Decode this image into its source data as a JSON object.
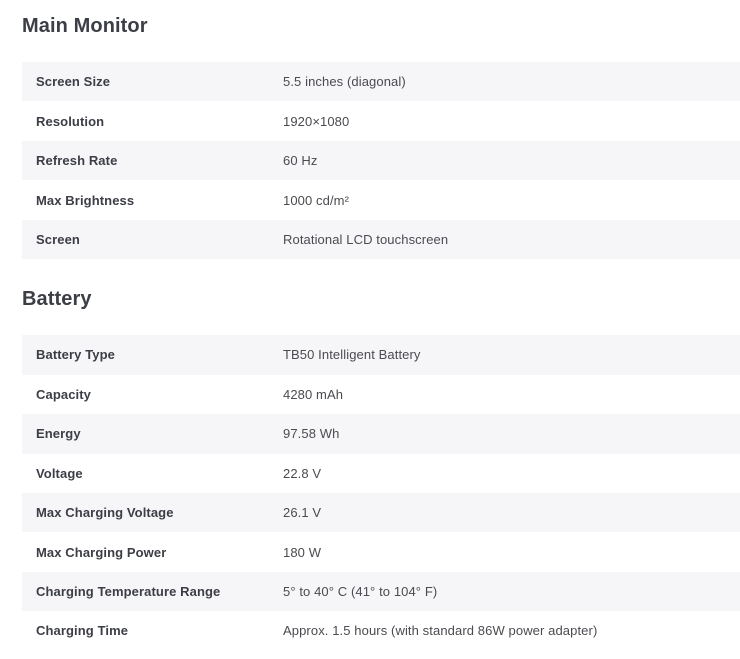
{
  "theme": {
    "row_stripe_bg": "#f6f6f8",
    "heading_color": "#3c3e46",
    "value_text_color": "#4a4b50",
    "page_bg": "#ffffff"
  },
  "sections": [
    {
      "title": "Main Monitor",
      "rows": [
        {
          "label": "Screen Size",
          "value": "5.5 inches (diagonal)"
        },
        {
          "label": "Resolution",
          "value": "1920×1080"
        },
        {
          "label": "Refresh Rate",
          "value": "60 Hz"
        },
        {
          "label": "Max Brightness",
          "value": "1000 cd/m²"
        },
        {
          "label": "Screen",
          "value": "Rotational LCD touchscreen"
        }
      ]
    },
    {
      "title": "Battery",
      "rows": [
        {
          "label": "Battery Type",
          "value": "TB50 Intelligent Battery"
        },
        {
          "label": "Capacity",
          "value": "4280 mAh"
        },
        {
          "label": "Energy",
          "value": "97.58 Wh"
        },
        {
          "label": "Voltage",
          "value": "22.8 V"
        },
        {
          "label": "Max Charging Voltage",
          "value": "26.1 V"
        },
        {
          "label": "Max Charging Power",
          "value": "180 W"
        },
        {
          "label": "Charging Temperature Range",
          "value": "5° to 40° C (41° to 104° F)"
        },
        {
          "label": "Charging Time",
          "value": "Approx. 1.5 hours (with standard 86W power adapter)"
        }
      ]
    }
  ]
}
